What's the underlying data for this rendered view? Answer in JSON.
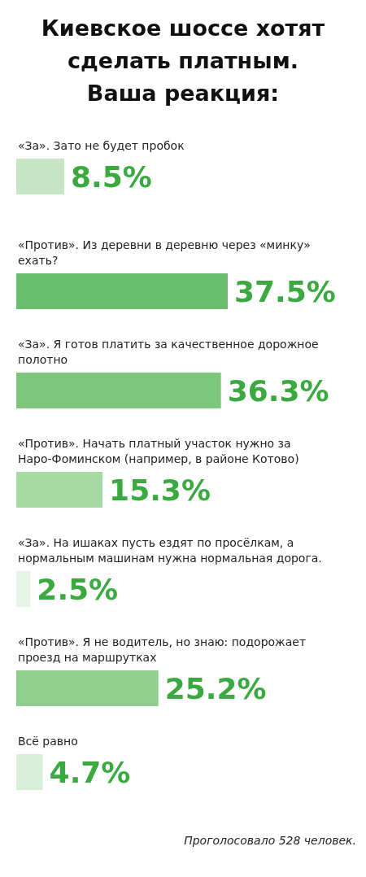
{
  "chart_data": {
    "type": "bar",
    "orientation": "horizontal",
    "title": "Киевское шоссе хотят сделать платным. Ваша реакция:",
    "categories": [
      "«За». Зато не будет пробок",
      "«Против». Из деревни в деревню через «минку» ехать?",
      "«За». Я готов платить за качественное дорожное полотно",
      "«Против». Начать платный участок нужно за Наро-Фоминском (например, в районе Котово)",
      "«За». На ишаках пусть ездят по просёлкам, а нормальным машинам нужна нормальная дорога.",
      "«Против». Я не водитель, но знаю: подорожает проезд на маршрутках",
      "Всё равно"
    ],
    "values": [
      8.5,
      37.5,
      36.3,
      15.3,
      2.5,
      25.2,
      4.7
    ],
    "colors": [
      "#c5e5c4",
      "#6abf6c",
      "#7dc77c",
      "#a6d9a4",
      "#e6f4e5",
      "#8fcf8e",
      "#d8eed6"
    ],
    "value_labels": [
      "8.5%",
      "37.5%",
      "36.3%",
      "15.3%",
      "2.5%",
      "25.2%",
      "4.7%"
    ],
    "annotations": [
      "Проголосовало 528 человек."
    ]
  }
}
